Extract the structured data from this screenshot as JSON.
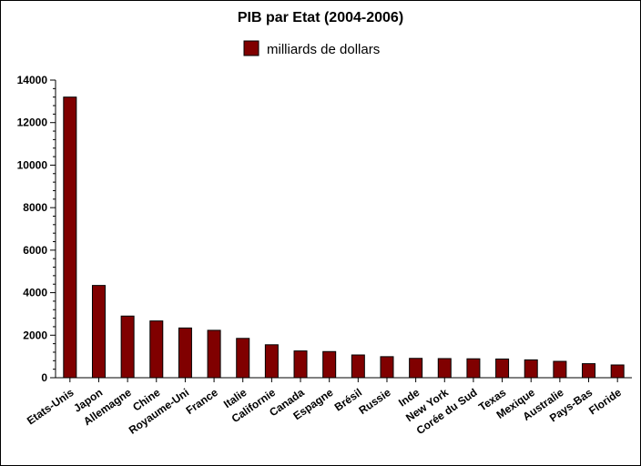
{
  "chart_data": {
    "type": "bar",
    "title": "PIB par Etat (2004-2006)",
    "xlabel": "",
    "ylabel": "",
    "ylim": [
      0,
      14000
    ],
    "yticks": [
      0,
      2000,
      4000,
      6000,
      8000,
      10000,
      12000,
      14000
    ],
    "grid": false,
    "legend_position": "top-center",
    "categories": [
      "Etats-Unis",
      "Japon",
      "Allemagne",
      "Chine",
      "Royaume-Uni",
      "France",
      "Italie",
      "Californie",
      "Canada",
      "Espagne",
      "Brésil",
      "Russie",
      "Inde",
      "New York",
      "Corée du Sud",
      "Texas",
      "Mexique",
      "Australie",
      "Pays-Bas",
      "Floride"
    ],
    "series": [
      {
        "name": "milliards de dollars",
        "color": "#800000",
        "values": [
          13200,
          4340,
          2900,
          2670,
          2340,
          2230,
          1850,
          1550,
          1260,
          1230,
          1070,
          990,
          910,
          900,
          890,
          880,
          840,
          770,
          660,
          600
        ]
      }
    ]
  }
}
